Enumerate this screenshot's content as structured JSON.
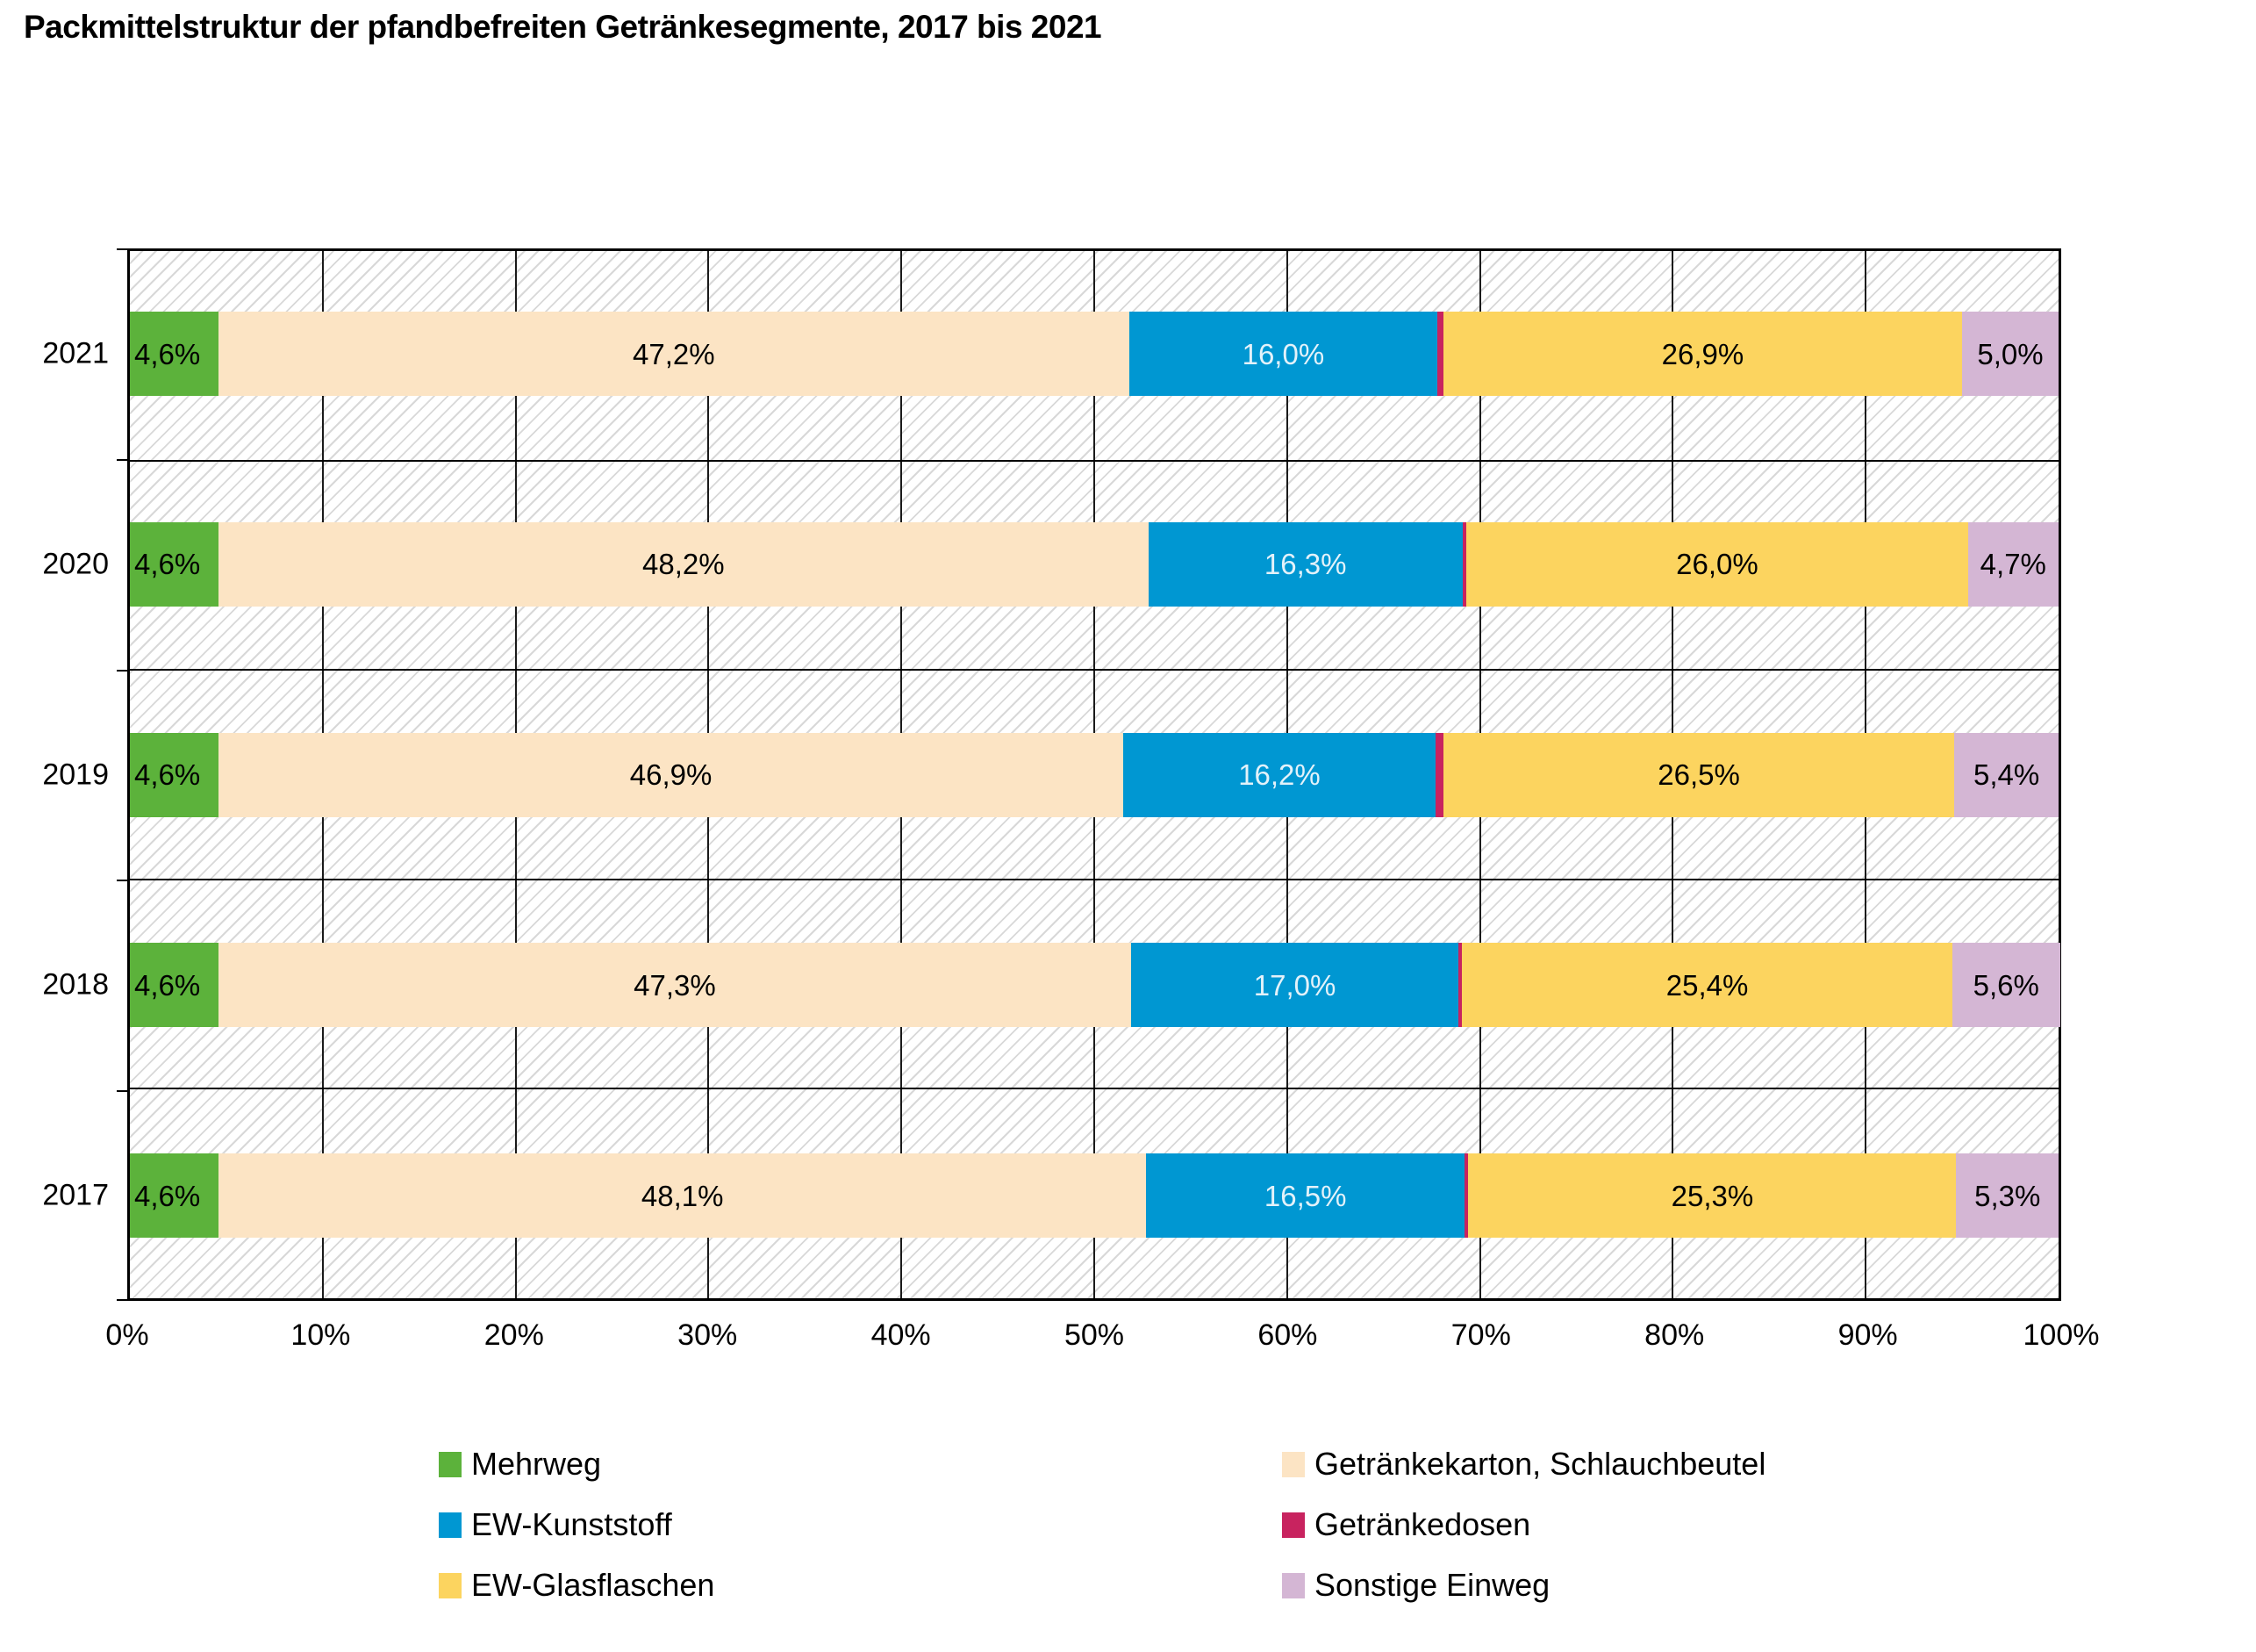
{
  "title": "Packmittelstruktur der pfandbefreiten Getränkesegmente, 2017 bis 2021",
  "chart_data": {
    "type": "bar",
    "variant": "horizontal-stacked",
    "title": "Packmittelstruktur der pfandbefreiten Getränkesegmente, 2017 bis 2021",
    "categories": [
      "2021",
      "2020",
      "2019",
      "2018",
      "2017"
    ],
    "series": [
      {
        "key": "mehrweg",
        "name": "Mehrweg",
        "color": "#5CB23B",
        "label_color": "#000000",
        "label_align": "left",
        "values": [
          4.6,
          4.6,
          4.6,
          4.6,
          4.6
        ],
        "labels": [
          "4,6%",
          "4,6%",
          "4,6%",
          "4,6%",
          "4,6%"
        ]
      },
      {
        "key": "getraenkekarton-schlauchbeutel",
        "name": "Getränkekarton, Schlauchbeutel",
        "color": "#FCE4C4",
        "label_color": "#000000",
        "label_align": "center",
        "values": [
          47.2,
          48.2,
          46.9,
          47.3,
          48.1
        ],
        "labels": [
          "47,2%",
          "48,2%",
          "46,9%",
          "47,3%",
          "48,1%"
        ]
      },
      {
        "key": "ew-kunststoff",
        "name": "EW-Kunststoff",
        "color": "#0097D2",
        "label_color": "#E3F2FA",
        "label_align": "center",
        "values": [
          16.0,
          16.3,
          16.2,
          17.0,
          16.5
        ],
        "labels": [
          "16,0%",
          "16,3%",
          "16,2%",
          "17,0%",
          "16,5%"
        ]
      },
      {
        "key": "getraenkedosen",
        "name": "Getränkedosen",
        "color": "#C8235F",
        "label_color": "#000000",
        "label_align": "center",
        "values": [
          0.3,
          0.2,
          0.4,
          0.1,
          0.2
        ],
        "labels": [
          "",
          "",
          "",
          "",
          ""
        ]
      },
      {
        "key": "ew-glasflaschen",
        "name": "EW-Glasflaschen",
        "color": "#FCD45F",
        "label_color": "#000000",
        "label_align": "center",
        "values": [
          26.9,
          26.0,
          26.5,
          25.4,
          25.3
        ],
        "labels": [
          "26,9%",
          "26,0%",
          "26,5%",
          "25,4%",
          "25,3%"
        ]
      },
      {
        "key": "sonstige-einweg",
        "name": "Sonstige Einweg",
        "color": "#D4B6D4",
        "label_color": "#000000",
        "label_align": "center",
        "values": [
          5.0,
          4.7,
          5.4,
          5.6,
          5.3
        ],
        "labels": [
          "5,0%",
          "4,7%",
          "5,4%",
          "5,6%",
          "5,3%"
        ]
      }
    ],
    "x_ticks": [
      "0%",
      "10%",
      "20%",
      "30%",
      "40%",
      "50%",
      "60%",
      "70%",
      "80%",
      "90%",
      "100%"
    ],
    "xlim": [
      0,
      100
    ],
    "grid": "vertical-every-10pct",
    "background": "diagonal-hatch",
    "legend": {
      "position": "bottom",
      "columns": [
        [
          {
            "label": "Mehrweg",
            "color": "#5CB23B"
          },
          {
            "label": "EW-Kunststoff",
            "color": "#0097D2"
          },
          {
            "label": "EW-Glasflaschen",
            "color": "#FCD45F"
          }
        ],
        [
          {
            "label": "Getränkekarton, Schlauchbeutel",
            "color": "#FCE4C4"
          },
          {
            "label": "Getränkedosen",
            "color": "#C8235F"
          },
          {
            "label": "Sonstige Einweg",
            "color": "#D4B6D4"
          }
        ]
      ]
    }
  }
}
